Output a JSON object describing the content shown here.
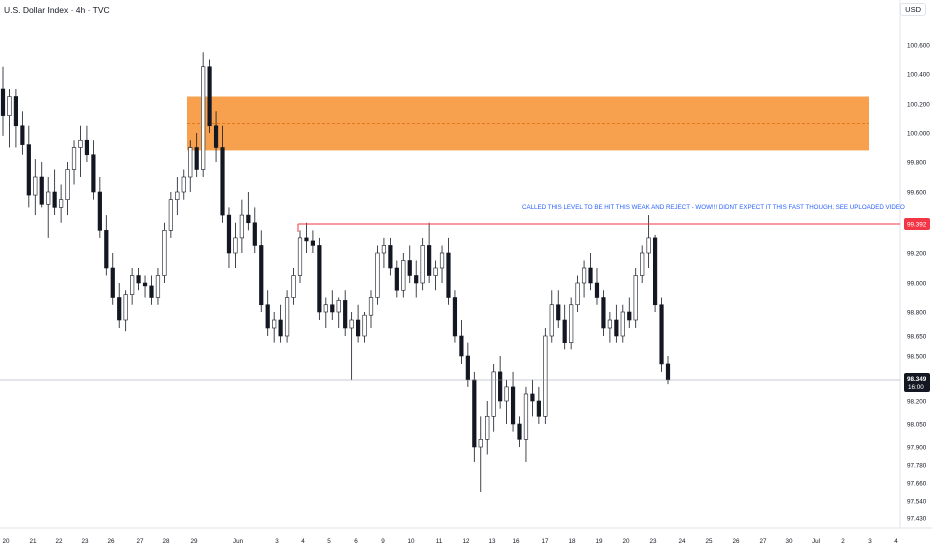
{
  "header": {
    "symbol": "U.S. Dollar Index · 4h · TVC",
    "currency": "USD"
  },
  "annotation": "CALLED THIS LEVEL TO BE HIT THIS WEAK AND REJECT - WOW!!! DIDNT EXPECT IT THIS FAST THOUGH. SEE UPLOADED VIDEO",
  "colors": {
    "up": "#131722",
    "zone": "#f7a14f",
    "level_line": "#f23645",
    "annotation": "#2962ff",
    "price_tag": "#131722"
  },
  "chart_data": {
    "type": "candlestick",
    "x_ticks": [
      "20",
      "21",
      "22",
      "23",
      "26",
      "27",
      "28",
      "29",
      "Jun",
      "3",
      "4",
      "5",
      "6",
      "9",
      "10",
      "11",
      "12",
      "13",
      "16",
      "17",
      "18",
      "19",
      "20",
      "23",
      "24",
      "25",
      "26",
      "27",
      "30",
      "Jul",
      "2",
      "3",
      "4"
    ],
    "y_ticks": [
      "100.600",
      "100.400",
      "100.200",
      "100.000",
      "99.800",
      "99.600",
      "99.392",
      "99.200",
      "99.000",
      "98.800",
      "98.650",
      "98.500",
      "98.349",
      "98.200",
      "98.050",
      "97.900",
      "97.780",
      "97.660",
      "97.540",
      "97.430"
    ],
    "ylim": [
      97.43,
      100.6
    ],
    "supply_zone": {
      "top": 100.25,
      "bottom": 99.88,
      "mid": 100.065
    },
    "level_line": 99.392,
    "current_price": 98.349,
    "countdown": "16:00",
    "candles": [
      {
        "o": 100.3,
        "h": 100.45,
        "l": 99.98,
        "c": 100.12
      },
      {
        "o": 100.12,
        "h": 100.3,
        "l": 99.9,
        "c": 100.25
      },
      {
        "o": 100.25,
        "h": 100.3,
        "l": 99.9,
        "c": 100.05
      },
      {
        "o": 100.05,
        "h": 100.15,
        "l": 99.85,
        "c": 99.92
      },
      {
        "o": 99.92,
        "h": 100.05,
        "l": 99.5,
        "c": 99.58
      },
      {
        "o": 99.58,
        "h": 99.82,
        "l": 99.45,
        "c": 99.7
      },
      {
        "o": 99.7,
        "h": 99.8,
        "l": 99.5,
        "c": 99.52
      },
      {
        "o": 99.52,
        "h": 99.7,
        "l": 99.3,
        "c": 99.6
      },
      {
        "o": 99.6,
        "h": 99.75,
        "l": 99.45,
        "c": 99.5
      },
      {
        "o": 99.5,
        "h": 99.65,
        "l": 99.4,
        "c": 99.55
      },
      {
        "o": 99.55,
        "h": 99.8,
        "l": 99.45,
        "c": 99.75
      },
      {
        "o": 99.75,
        "h": 99.95,
        "l": 99.65,
        "c": 99.9
      },
      {
        "o": 99.9,
        "h": 100.05,
        "l": 99.7,
        "c": 99.95
      },
      {
        "o": 99.95,
        "h": 100.05,
        "l": 99.8,
        "c": 99.85
      },
      {
        "o": 99.85,
        "h": 99.95,
        "l": 99.55,
        "c": 99.6
      },
      {
        "o": 99.6,
        "h": 99.7,
        "l": 99.3,
        "c": 99.35
      },
      {
        "o": 99.35,
        "h": 99.45,
        "l": 99.05,
        "c": 99.1
      },
      {
        "o": 99.1,
        "h": 99.2,
        "l": 98.85,
        "c": 98.9
      },
      {
        "o": 98.9,
        "h": 99.0,
        "l": 98.7,
        "c": 98.75
      },
      {
        "o": 98.75,
        "h": 98.95,
        "l": 98.68,
        "c": 98.92
      },
      {
        "o": 98.92,
        "h": 99.1,
        "l": 98.85,
        "c": 99.05
      },
      {
        "o": 99.05,
        "h": 99.1,
        "l": 98.95,
        "c": 99.0
      },
      {
        "o": 99.0,
        "h": 99.05,
        "l": 98.9,
        "c": 98.98
      },
      {
        "o": 98.98,
        "h": 99.05,
        "l": 98.85,
        "c": 98.9
      },
      {
        "o": 98.9,
        "h": 99.1,
        "l": 98.85,
        "c": 99.05
      },
      {
        "o": 99.05,
        "h": 99.4,
        "l": 99.0,
        "c": 99.35
      },
      {
        "o": 99.35,
        "h": 99.6,
        "l": 99.3,
        "c": 99.55
      },
      {
        "o": 99.55,
        "h": 99.7,
        "l": 99.45,
        "c": 99.6
      },
      {
        "o": 99.6,
        "h": 99.75,
        "l": 99.55,
        "c": 99.7
      },
      {
        "o": 99.7,
        "h": 99.95,
        "l": 99.6,
        "c": 99.9
      },
      {
        "o": 99.9,
        "h": 100.0,
        "l": 99.7,
        "c": 99.75
      },
      {
        "o": 99.75,
        "h": 100.55,
        "l": 99.7,
        "c": 100.45
      },
      {
        "o": 100.45,
        "h": 100.5,
        "l": 100.0,
        "c": 100.05
      },
      {
        "o": 100.05,
        "h": 100.15,
        "l": 99.8,
        "c": 99.9
      },
      {
        "o": 99.9,
        "h": 100.05,
        "l": 99.4,
        "c": 99.45
      },
      {
        "o": 99.45,
        "h": 99.5,
        "l": 99.1,
        "c": 99.2
      },
      {
        "o": 99.2,
        "h": 99.4,
        "l": 99.1,
        "c": 99.3
      },
      {
        "o": 99.3,
        "h": 99.55,
        "l": 99.2,
        "c": 99.45
      },
      {
        "o": 99.45,
        "h": 99.6,
        "l": 99.35,
        "c": 99.4
      },
      {
        "o": 99.4,
        "h": 99.5,
        "l": 99.2,
        "c": 99.25
      },
      {
        "o": 99.25,
        "h": 99.35,
        "l": 98.8,
        "c": 98.85
      },
      {
        "o": 98.85,
        "h": 98.95,
        "l": 98.65,
        "c": 98.7
      },
      {
        "o": 98.7,
        "h": 98.8,
        "l": 98.6,
        "c": 98.75
      },
      {
        "o": 98.75,
        "h": 98.85,
        "l": 98.6,
        "c": 98.65
      },
      {
        "o": 98.65,
        "h": 98.95,
        "l": 98.6,
        "c": 98.9
      },
      {
        "o": 98.9,
        "h": 99.1,
        "l": 98.85,
        "c": 99.05
      },
      {
        "o": 99.05,
        "h": 99.35,
        "l": 99.0,
        "c": 99.3
      },
      {
        "o": 99.3,
        "h": 99.4,
        "l": 99.2,
        "c": 99.28
      },
      {
        "o": 99.28,
        "h": 99.35,
        "l": 99.2,
        "c": 99.25
      },
      {
        "o": 99.25,
        "h": 99.3,
        "l": 98.75,
        "c": 98.8
      },
      {
        "o": 98.8,
        "h": 98.9,
        "l": 98.7,
        "c": 98.85
      },
      {
        "o": 98.85,
        "h": 98.95,
        "l": 98.75,
        "c": 98.8
      },
      {
        "o": 98.8,
        "h": 98.9,
        "l": 98.7,
        "c": 98.88
      },
      {
        "o": 98.88,
        "h": 98.95,
        "l": 98.65,
        "c": 98.7
      },
      {
        "o": 98.7,
        "h": 98.8,
        "l": 98.35,
        "c": 98.75
      },
      {
        "o": 98.75,
        "h": 98.85,
        "l": 98.6,
        "c": 98.65
      },
      {
        "o": 98.65,
        "h": 98.8,
        "l": 98.6,
        "c": 98.78
      },
      {
        "o": 98.78,
        "h": 98.95,
        "l": 98.7,
        "c": 98.9
      },
      {
        "o": 98.9,
        "h": 99.25,
        "l": 98.85,
        "c": 99.2
      },
      {
        "o": 99.2,
        "h": 99.3,
        "l": 99.1,
        "c": 99.25
      },
      {
        "o": 99.25,
        "h": 99.3,
        "l": 99.05,
        "c": 99.1
      },
      {
        "o": 99.1,
        "h": 99.15,
        "l": 98.9,
        "c": 98.95
      },
      {
        "o": 98.95,
        "h": 99.2,
        "l": 98.9,
        "c": 99.15
      },
      {
        "o": 99.15,
        "h": 99.25,
        "l": 99.0,
        "c": 99.05
      },
      {
        "o": 99.05,
        "h": 99.15,
        "l": 98.9,
        "c": 99.0
      },
      {
        "o": 99.0,
        "h": 99.3,
        "l": 98.95,
        "c": 99.25
      },
      {
        "o": 99.25,
        "h": 99.4,
        "l": 99.0,
        "c": 99.05
      },
      {
        "o": 99.05,
        "h": 99.15,
        "l": 98.95,
        "c": 99.1
      },
      {
        "o": 99.1,
        "h": 99.25,
        "l": 99.0,
        "c": 99.2
      },
      {
        "o": 99.2,
        "h": 99.3,
        "l": 98.85,
        "c": 98.9
      },
      {
        "o": 98.9,
        "h": 98.95,
        "l": 98.6,
        "c": 98.65
      },
      {
        "o": 98.65,
        "h": 98.75,
        "l": 98.45,
        "c": 98.5
      },
      {
        "o": 98.5,
        "h": 98.6,
        "l": 98.3,
        "c": 98.35
      },
      {
        "o": 98.35,
        "h": 98.4,
        "l": 97.8,
        "c": 97.9
      },
      {
        "o": 97.9,
        "h": 98.1,
        "l": 97.6,
        "c": 97.95
      },
      {
        "o": 97.95,
        "h": 98.2,
        "l": 97.85,
        "c": 98.1
      },
      {
        "o": 98.1,
        "h": 98.45,
        "l": 98.0,
        "c": 98.4
      },
      {
        "o": 98.4,
        "h": 98.5,
        "l": 98.15,
        "c": 98.2
      },
      {
        "o": 98.2,
        "h": 98.35,
        "l": 98.05,
        "c": 98.3
      },
      {
        "o": 98.3,
        "h": 98.4,
        "l": 98.0,
        "c": 98.05
      },
      {
        "o": 98.05,
        "h": 98.1,
        "l": 97.9,
        "c": 97.95
      },
      {
        "o": 97.95,
        "h": 98.3,
        "l": 97.8,
        "c": 98.25
      },
      {
        "o": 98.25,
        "h": 98.35,
        "l": 98.1,
        "c": 98.2
      },
      {
        "o": 98.2,
        "h": 98.3,
        "l": 98.05,
        "c": 98.1
      },
      {
        "o": 98.1,
        "h": 98.7,
        "l": 98.05,
        "c": 98.65
      },
      {
        "o": 98.65,
        "h": 98.95,
        "l": 98.6,
        "c": 98.85
      },
      {
        "o": 98.85,
        "h": 98.95,
        "l": 98.7,
        "c": 98.75
      },
      {
        "o": 98.75,
        "h": 98.85,
        "l": 98.55,
        "c": 98.6
      },
      {
        "o": 98.6,
        "h": 98.9,
        "l": 98.55,
        "c": 98.85
      },
      {
        "o": 98.85,
        "h": 99.05,
        "l": 98.8,
        "c": 99.0
      },
      {
        "o": 99.0,
        "h": 99.15,
        "l": 98.9,
        "c": 99.1
      },
      {
        "o": 99.1,
        "h": 99.2,
        "l": 98.95,
        "c": 99.0
      },
      {
        "o": 99.0,
        "h": 99.1,
        "l": 98.85,
        "c": 98.9
      },
      {
        "o": 98.9,
        "h": 98.95,
        "l": 98.65,
        "c": 98.7
      },
      {
        "o": 98.7,
        "h": 98.8,
        "l": 98.6,
        "c": 98.75
      },
      {
        "o": 98.75,
        "h": 98.85,
        "l": 98.6,
        "c": 98.65
      },
      {
        "o": 98.65,
        "h": 98.85,
        "l": 98.6,
        "c": 98.8
      },
      {
        "o": 98.8,
        "h": 98.9,
        "l": 98.7,
        "c": 98.75
      },
      {
        "o": 98.75,
        "h": 99.1,
        "l": 98.7,
        "c": 99.05
      },
      {
        "o": 99.05,
        "h": 99.25,
        "l": 99.0,
        "c": 99.2
      },
      {
        "o": 99.2,
        "h": 99.45,
        "l": 99.1,
        "c": 99.3
      },
      {
        "o": 99.3,
        "h": 99.32,
        "l": 98.8,
        "c": 98.85
      },
      {
        "o": 98.85,
        "h": 98.9,
        "l": 98.4,
        "c": 98.45
      },
      {
        "o": 98.45,
        "h": 98.5,
        "l": 98.32,
        "c": 98.35
      }
    ]
  }
}
